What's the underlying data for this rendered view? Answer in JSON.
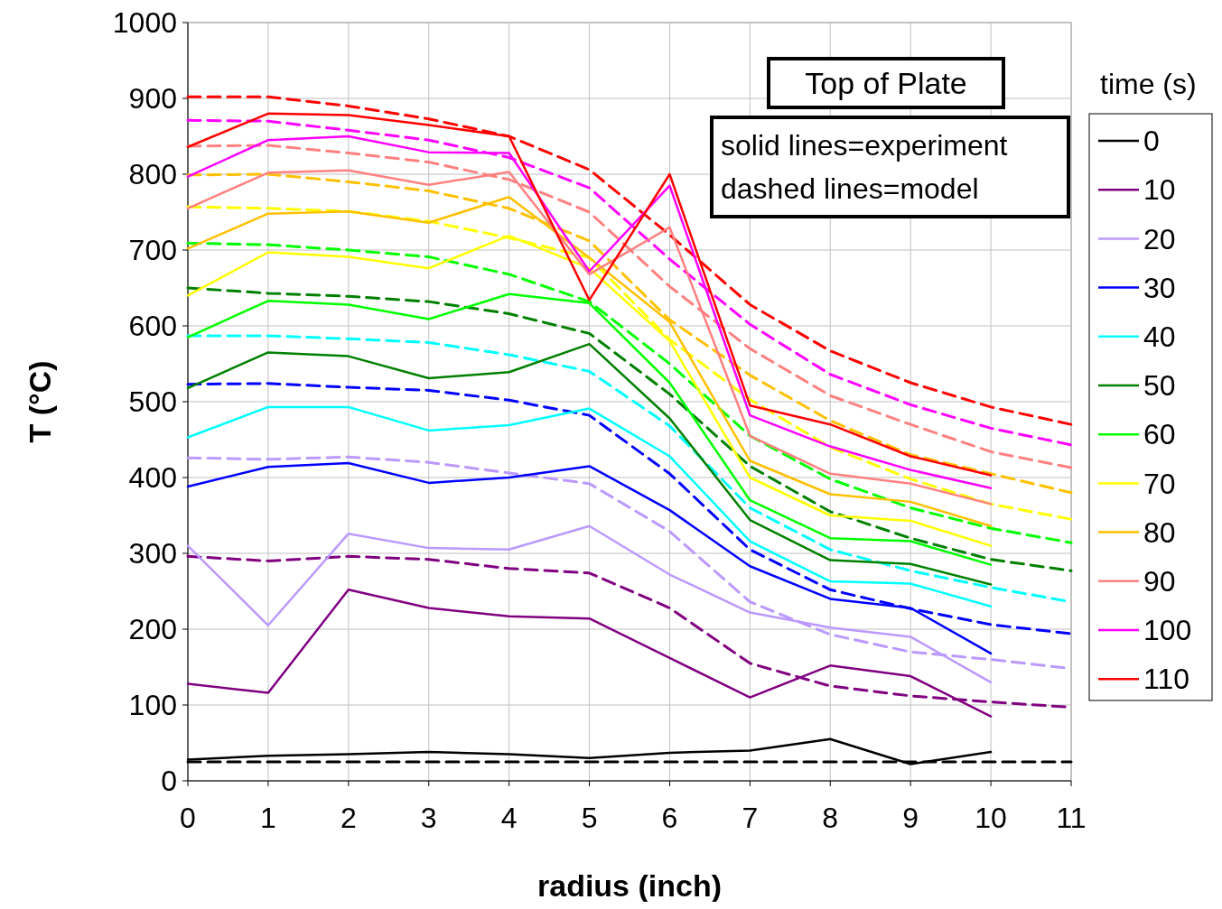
{
  "chart_data": {
    "type": "line",
    "xlabel": "radius (inch)",
    "ylabel": "T (°C)",
    "legend_title": "time (s)",
    "legend": "right",
    "grid": true,
    "xlim": [
      0,
      11
    ],
    "xticks": [
      0,
      1,
      2,
      3,
      4,
      5,
      6,
      7,
      8,
      9,
      10,
      11
    ],
    "ylim": [
      0,
      1000
    ],
    "yticks": [
      0,
      100,
      200,
      300,
      400,
      500,
      600,
      700,
      800,
      900,
      1000
    ],
    "annotations": [
      "Top of Plate",
      "solid lines=experiment\ndashed lines=model"
    ],
    "series": [
      {
        "name": "0",
        "color": "#000000",
        "line_style": "solid",
        "x": [
          0,
          1,
          2,
          3,
          4,
          5,
          6,
          7,
          8,
          9,
          10
        ],
        "values": [
          28,
          33,
          35,
          38,
          35,
          30,
          37,
          40,
          55,
          22,
          38
        ]
      },
      {
        "name": "10",
        "color": "#800080",
        "line_style": "solid",
        "x": [
          0,
          1,
          2,
          3,
          4,
          5,
          6,
          7,
          8,
          9,
          10
        ],
        "values": [
          128,
          116,
          252,
          228,
          217,
          214,
          162,
          110,
          152,
          138,
          85
        ]
      },
      {
        "name": "20",
        "color": "#bb99ff",
        "line_style": "solid",
        "x": [
          0,
          1,
          2,
          3,
          4,
          5,
          6,
          7,
          8,
          9,
          10
        ],
        "values": [
          310,
          205,
          326,
          307,
          305,
          336,
          272,
          222,
          202,
          190,
          130
        ]
      },
      {
        "name": "30",
        "color": "#0000ff",
        "line_style": "solid",
        "x": [
          0,
          1,
          2,
          3,
          4,
          5,
          6,
          7,
          8,
          9,
          10
        ],
        "values": [
          388,
          414,
          419,
          393,
          400,
          415,
          357,
          283,
          240,
          228,
          168
        ]
      },
      {
        "name": "40",
        "color": "#00ffff",
        "line_style": "solid",
        "x": [
          0,
          1,
          2,
          3,
          4,
          5,
          6,
          7,
          8,
          9,
          10
        ],
        "values": [
          453,
          493,
          493,
          462,
          469,
          491,
          428,
          316,
          263,
          260,
          230
        ]
      },
      {
        "name": "50",
        "color": "#008000",
        "line_style": "solid",
        "x": [
          0,
          1,
          2,
          3,
          4,
          5,
          6,
          7,
          8,
          9,
          10
        ],
        "values": [
          518,
          565,
          560,
          531,
          539,
          576,
          478,
          344,
          291,
          286,
          259
        ]
      },
      {
        "name": "60",
        "color": "#00ff00",
        "line_style": "solid",
        "x": [
          0,
          1,
          2,
          3,
          4,
          5,
          6,
          7,
          8,
          9,
          10
        ],
        "values": [
          585,
          633,
          628,
          609,
          642,
          630,
          525,
          370,
          320,
          316,
          285
        ]
      },
      {
        "name": "70",
        "color": "#ffff00",
        "line_style": "solid",
        "x": [
          0,
          1,
          2,
          3,
          4,
          5,
          6,
          7,
          8,
          9,
          10
        ],
        "values": [
          640,
          697,
          691,
          676,
          719,
          676,
          580,
          400,
          350,
          343,
          310
        ]
      },
      {
        "name": "80",
        "color": "#ffc000",
        "line_style": "solid",
        "x": [
          0,
          1,
          2,
          3,
          4,
          5,
          6,
          7,
          8,
          9,
          10
        ],
        "values": [
          702,
          748,
          751,
          736,
          770,
          690,
          605,
          422,
          378,
          368,
          336
        ]
      },
      {
        "name": "90",
        "color": "#ff8080",
        "line_style": "solid",
        "x": [
          0,
          1,
          2,
          3,
          4,
          5,
          6,
          7,
          8,
          9,
          10
        ],
        "values": [
          755,
          802,
          805,
          786,
          803,
          668,
          730,
          455,
          405,
          392,
          365
        ]
      },
      {
        "name": "100",
        "color": "#ff00ff",
        "line_style": "solid",
        "x": [
          0,
          1,
          2,
          3,
          4,
          5,
          6,
          7,
          8,
          9,
          10
        ],
        "values": [
          797,
          845,
          850,
          829,
          828,
          672,
          785,
          482,
          441,
          410,
          386
        ]
      },
      {
        "name": "110",
        "color": "#ff0000",
        "line_style": "solid",
        "x": [
          0,
          1,
          2,
          3,
          4,
          5,
          6,
          7,
          8,
          9,
          10
        ],
        "values": [
          836,
          880,
          878,
          865,
          850,
          634,
          800,
          495,
          470,
          428,
          403
        ]
      },
      {
        "color": "#000000",
        "line_style": "dashed",
        "x": [
          0,
          1,
          2,
          3,
          4,
          5,
          6,
          7,
          8,
          9,
          10,
          11
        ],
        "values": [
          25,
          25,
          25,
          25,
          25,
          25,
          25,
          25,
          25,
          25,
          25,
          25
        ]
      },
      {
        "color": "#800080",
        "line_style": "dashed",
        "x": [
          0,
          1,
          2,
          3,
          4,
          5,
          6,
          7,
          8,
          9,
          10,
          11
        ],
        "values": [
          296,
          290,
          296,
          292,
          280,
          274,
          228,
          155,
          125,
          112,
          104,
          97
        ]
      },
      {
        "color": "#bb99ff",
        "line_style": "dashed",
        "x": [
          0,
          1,
          2,
          3,
          4,
          5,
          6,
          7,
          8,
          9,
          10,
          11
        ],
        "values": [
          426,
          424,
          427,
          420,
          406,
          392,
          329,
          236,
          193,
          170,
          160,
          148
        ]
      },
      {
        "color": "#0000ff",
        "line_style": "dashed",
        "x": [
          0,
          1,
          2,
          3,
          4,
          5,
          6,
          7,
          8,
          9,
          10,
          11
        ],
        "values": [
          523,
          524,
          519,
          515,
          502,
          482,
          405,
          305,
          252,
          227,
          206,
          194
        ]
      },
      {
        "color": "#00ffff",
        "line_style": "dashed",
        "x": [
          0,
          1,
          2,
          3,
          4,
          5,
          6,
          7,
          8,
          9,
          10,
          11
        ],
        "values": [
          587,
          587,
          583,
          578,
          562,
          540,
          468,
          360,
          305,
          277,
          255,
          236
        ]
      },
      {
        "color": "#008000",
        "line_style": "dashed",
        "x": [
          0,
          1,
          2,
          3,
          4,
          5,
          6,
          7,
          8,
          9,
          10,
          11
        ],
        "values": [
          650,
          643,
          639,
          632,
          616,
          590,
          510,
          415,
          355,
          320,
          292,
          277
        ]
      },
      {
        "color": "#00ff00",
        "line_style": "dashed",
        "x": [
          0,
          1,
          2,
          3,
          4,
          5,
          6,
          7,
          8,
          9,
          10,
          11
        ],
        "values": [
          709,
          707,
          700,
          691,
          668,
          632,
          550,
          455,
          398,
          360,
          333,
          314
        ]
      },
      {
        "color": "#ffff00",
        "line_style": "dashed",
        "x": [
          0,
          1,
          2,
          3,
          4,
          5,
          6,
          7,
          8,
          9,
          10,
          11
        ],
        "values": [
          757,
          755,
          751,
          738,
          716,
          690,
          582,
          503,
          440,
          398,
          365,
          345
        ]
      },
      {
        "color": "#ffc000",
        "line_style": "dashed",
        "x": [
          0,
          1,
          2,
          3,
          4,
          5,
          6,
          7,
          8,
          9,
          10,
          11
        ],
        "values": [
          799,
          800,
          790,
          778,
          755,
          712,
          608,
          535,
          475,
          430,
          405,
          380
        ]
      },
      {
        "color": "#ff8080",
        "line_style": "dashed",
        "x": [
          0,
          1,
          2,
          3,
          4,
          5,
          6,
          7,
          8,
          9,
          10,
          11
        ],
        "values": [
          837,
          838,
          828,
          816,
          793,
          750,
          652,
          570,
          508,
          470,
          434,
          413
        ]
      },
      {
        "color": "#ff00ff",
        "line_style": "dashed",
        "x": [
          0,
          1,
          2,
          3,
          4,
          5,
          6,
          7,
          8,
          9,
          10,
          11
        ],
        "values": [
          871,
          870,
          858,
          845,
          822,
          782,
          688,
          602,
          536,
          496,
          465,
          443
        ]
      },
      {
        "color": "#ff0000",
        "line_style": "dashed",
        "x": [
          0,
          1,
          2,
          3,
          4,
          5,
          6,
          7,
          8,
          9,
          10,
          11
        ],
        "values": [
          902,
          902,
          890,
          873,
          850,
          806,
          720,
          628,
          567,
          525,
          493,
          470
        ]
      }
    ]
  }
}
